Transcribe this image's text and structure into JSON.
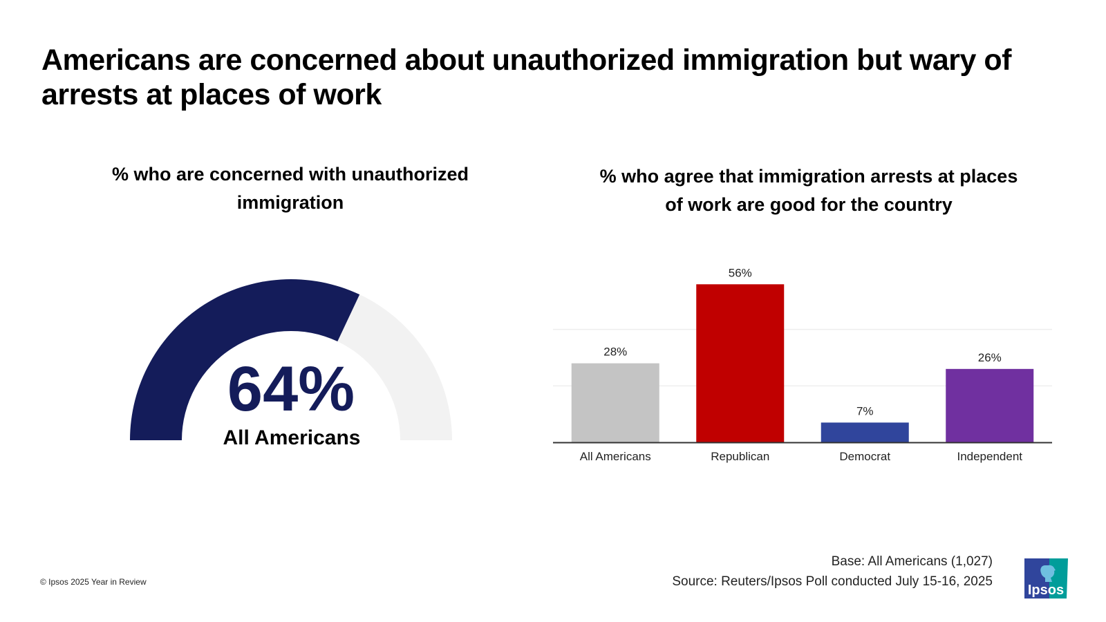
{
  "title": "Americans are concerned about unauthorized immigration but wary of arrests at places of work",
  "colors": {
    "gauge_fill": "#141c5a",
    "gauge_track": "#f2f2f2",
    "gridline": "#eeeeee",
    "axis": "#333333"
  },
  "chart_data": [
    {
      "type": "gauge",
      "title": "% who are concerned with unauthorized immigration",
      "value": 64,
      "range": [
        0,
        100
      ],
      "value_label": "64%",
      "caption": "All Americans"
    },
    {
      "type": "bar",
      "title": "% who agree that immigration arrests at places of work are good for the country",
      "categories": [
        "All Americans",
        "Republican",
        "Democrat",
        "Independent"
      ],
      "values": [
        28,
        56,
        7,
        26
      ],
      "labels": [
        "28%",
        "56%",
        "7%",
        "26%"
      ],
      "colors": [
        "#c4c4c4",
        "#c00000",
        "#30459c",
        "#7030a0"
      ],
      "xlabel": "",
      "ylabel": "",
      "ylim": [
        0,
        60
      ],
      "gridlines": [
        20,
        40
      ],
      "grid": true
    }
  ],
  "footer": {
    "copyright": "© Ipsos 2025 Year in Review",
    "base": "Base: All Americans (1,027)",
    "source": "Source: Reuters/Ipsos Poll conducted July 15-16, 2025",
    "logo_text": "Ipsos"
  }
}
